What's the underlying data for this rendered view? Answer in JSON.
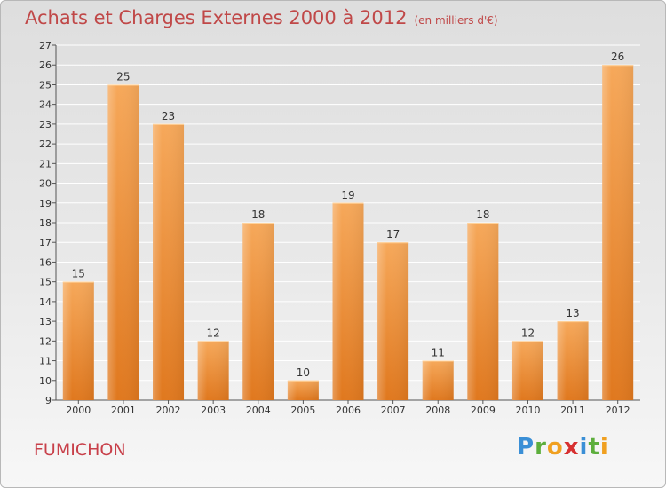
{
  "title": "Achats et Charges Externes 2000 à 2012",
  "unit": "(en milliers d'€)",
  "town": "FUMICHON",
  "logo": "Proxiti",
  "colors": {
    "bar_light": "#f6a85a",
    "bar_dark": "#e4832a",
    "title": "#c04848"
  },
  "chart_data": {
    "type": "bar",
    "title": "Achats et Charges Externes 2000 à 2012",
    "xlabel": "",
    "ylabel": "",
    "ylim": [
      9,
      27
    ],
    "yticks": [
      9,
      10,
      11,
      12,
      13,
      14,
      15,
      16,
      17,
      18,
      19,
      20,
      21,
      22,
      23,
      24,
      25,
      26,
      27
    ],
    "categories": [
      "2000",
      "2001",
      "2002",
      "2003",
      "2004",
      "2005",
      "2006",
      "2007",
      "2008",
      "2009",
      "2010",
      "2011",
      "2012"
    ],
    "values": [
      15,
      25,
      23,
      12,
      18,
      10,
      19,
      17,
      11,
      18,
      12,
      13,
      26
    ],
    "grid": true
  }
}
